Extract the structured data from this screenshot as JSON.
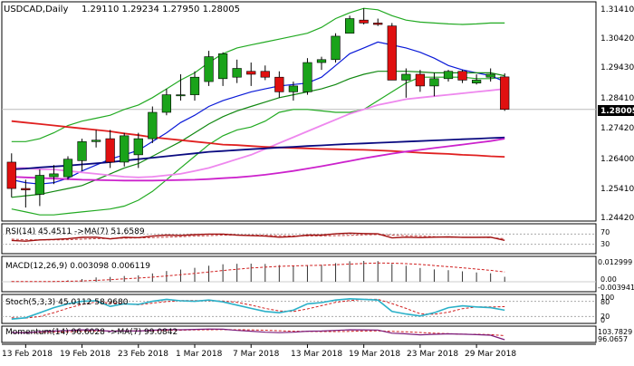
{
  "header": {
    "symbol": "USDCAD,Daily",
    "ohlc": "1.29110 1.29234 1.27950 1.28005"
  },
  "price_axis": {
    "ticks": [
      "1.31410",
      "1.30420",
      "1.29430",
      "1.28410",
      "1.27420",
      "1.26400",
      "1.25410",
      "1.24420"
    ],
    "current_price": "1.28005"
  },
  "date_labels": [
    "13 Feb 2018",
    "19 Feb 2018",
    "23 Feb 2018",
    "1 Mar 2018",
    "7 Mar 2018",
    "13 Mar 2018",
    "19 Mar 2018",
    "23 Mar 2018",
    "29 Mar 2018"
  ],
  "indicators": {
    "rsi": {
      "label": "RSI(14) 45.4511  ->MA(7) 51.6589",
      "ticks": [
        "70",
        "30"
      ],
      "value": 45.4511,
      "ma": 51.6589
    },
    "macd": {
      "label": "MACD(12,26,9) 0.003098 0.006119",
      "ticks": [
        "0.012999",
        "0.00",
        "-0.003941"
      ],
      "main": 0.003098,
      "signal": 0.006119
    },
    "stoch": {
      "label": "Stoch(5,3,3) 45.0112 58.9680",
      "ticks": [
        "100",
        "80",
        "20",
        "0"
      ],
      "main": 45.0112,
      "signal": 58.968
    },
    "momentum": {
      "label": "Momentum(14) 96.6028  ->MA(7) 99.0842",
      "ticks": [
        "103.7829",
        "96.0657"
      ],
      "value": 96.6028,
      "ma": 99.0842
    }
  },
  "colors": {
    "bull_candle": "#1aa31a",
    "bear_candle": "#e01010",
    "bollinger": "#22aa22",
    "ma_fast_blue": "#0a1ad8",
    "ma_green": "#118811",
    "ma_pink": "#ee88ee",
    "ma_red": "#e02020",
    "ma_navy": "#0a0a80",
    "ma_magenta": "#cc22cc",
    "indicator_line": "#a01010",
    "osc_line": "#2ab0c8",
    "current_price_box": "#000000"
  },
  "chart_data": {
    "type": "candlestick",
    "title": "USDCAD,Daily",
    "x": [
      "2018-02-12",
      "2018-02-13",
      "2018-02-14",
      "2018-02-15",
      "2018-02-16",
      "2018-02-19",
      "2018-02-20",
      "2018-02-21",
      "2018-02-22",
      "2018-02-23",
      "2018-02-26",
      "2018-02-27",
      "2018-02-28",
      "2018-03-01",
      "2018-03-02",
      "2018-03-05",
      "2018-03-06",
      "2018-03-07",
      "2018-03-08",
      "2018-03-09",
      "2018-03-12",
      "2018-03-13",
      "2018-03-14",
      "2018-03-15",
      "2018-03-16",
      "2018-03-19",
      "2018-03-20",
      "2018-03-21",
      "2018-03-22",
      "2018-03-23",
      "2018-03-26",
      "2018-03-27",
      "2018-03-28",
      "2018-03-29",
      "2018-03-30",
      "2018-04-02"
    ],
    "candles": [
      {
        "o": 1.262,
        "h": 1.265,
        "l": 1.25,
        "c": 1.253
      },
      {
        "o": 1.253,
        "h": 1.256,
        "l": 1.2465,
        "c": 1.2525
      },
      {
        "o": 1.251,
        "h": 1.2595,
        "l": 1.247,
        "c": 1.2575
      },
      {
        "o": 1.257,
        "h": 1.261,
        "l": 1.2545,
        "c": 1.258
      },
      {
        "o": 1.257,
        "h": 1.264,
        "l": 1.256,
        "c": 1.263
      },
      {
        "o": 1.2625,
        "h": 1.27,
        "l": 1.259,
        "c": 1.269
      },
      {
        "o": 1.269,
        "h": 1.273,
        "l": 1.267,
        "c": 1.2695
      },
      {
        "o": 1.27,
        "h": 1.273,
        "l": 1.26,
        "c": 1.262
      },
      {
        "o": 1.262,
        "h": 1.272,
        "l": 1.2605,
        "c": 1.271
      },
      {
        "o": 1.2645,
        "h": 1.272,
        "l": 1.26,
        "c": 1.27
      },
      {
        "o": 1.27,
        "h": 1.281,
        "l": 1.2685,
        "c": 1.279
      },
      {
        "o": 1.279,
        "h": 1.287,
        "l": 1.278,
        "c": 1.285
      },
      {
        "o": 1.285,
        "h": 1.292,
        "l": 1.283,
        "c": 1.285
      },
      {
        "o": 1.285,
        "h": 1.293,
        "l": 1.283,
        "c": 1.291
      },
      {
        "o": 1.2895,
        "h": 1.3,
        "l": 1.288,
        "c": 1.298
      },
      {
        "o": 1.2905,
        "h": 1.2995,
        "l": 1.288,
        "c": 1.299
      },
      {
        "o": 1.291,
        "h": 1.297,
        "l": 1.289,
        "c": 1.294
      },
      {
        "o": 1.293,
        "h": 1.296,
        "l": 1.288,
        "c": 1.292
      },
      {
        "o": 1.293,
        "h": 1.295,
        "l": 1.29,
        "c": 1.291
      },
      {
        "o": 1.291,
        "h": 1.293,
        "l": 1.284,
        "c": 1.286
      },
      {
        "o": 1.286,
        "h": 1.2895,
        "l": 1.283,
        "c": 1.288
      },
      {
        "o": 1.286,
        "h": 1.2975,
        "l": 1.285,
        "c": 1.296
      },
      {
        "o": 1.296,
        "h": 1.298,
        "l": 1.2935,
        "c": 1.297
      },
      {
        "o": 1.297,
        "h": 1.306,
        "l": 1.296,
        "c": 1.305
      },
      {
        "o": 1.306,
        "h": 1.312,
        "l": 1.306,
        "c": 1.311
      },
      {
        "o": 1.3105,
        "h": 1.3145,
        "l": 1.309,
        "c": 1.3095
      },
      {
        "o": 1.3095,
        "h": 1.311,
        "l": 1.3085,
        "c": 1.309
      },
      {
        "o": 1.3085,
        "h": 1.3095,
        "l": 1.29,
        "c": 1.29
      },
      {
        "o": 1.29,
        "h": 1.294,
        "l": 1.284,
        "c": 1.292
      },
      {
        "o": 1.292,
        "h": 1.2935,
        "l": 1.286,
        "c": 1.288
      },
      {
        "o": 1.288,
        "h": 1.2925,
        "l": 1.2845,
        "c": 1.2905
      },
      {
        "o": 1.2905,
        "h": 1.2935,
        "l": 1.2895,
        "c": 1.293
      },
      {
        "o": 1.293,
        "h": 1.2935,
        "l": 1.289,
        "c": 1.29
      },
      {
        "o": 1.289,
        "h": 1.292,
        "l": 1.2885,
        "c": 1.29
      },
      {
        "o": 1.291,
        "h": 1.294,
        "l": 1.2895,
        "c": 1.292
      },
      {
        "o": 1.2911,
        "h": 1.2923,
        "l": 1.2795,
        "c": 1.28
      }
    ],
    "ylim": [
      1.2425,
      1.3155
    ],
    "grid": false,
    "moving_averages": [
      {
        "color_key": "bollinger",
        "values": [
          1.269,
          1.269,
          1.27,
          1.272,
          1.2745,
          1.276,
          1.277,
          1.278,
          1.28,
          1.2815,
          1.284,
          1.287,
          1.29,
          1.2925,
          1.296,
          1.299,
          1.301,
          1.302,
          1.303,
          1.304,
          1.305,
          1.306,
          1.308,
          1.311,
          1.313,
          1.3145,
          1.314,
          1.312,
          1.3105,
          1.3098,
          1.3095,
          1.3092,
          1.309,
          1.3092,
          1.3095,
          1.3095
        ]
      },
      {
        "color_key": "bollinger",
        "values": [
          1.246,
          1.245,
          1.244,
          1.244,
          1.2445,
          1.245,
          1.2455,
          1.246,
          1.247,
          1.249,
          1.252,
          1.256,
          1.26,
          1.264,
          1.268,
          1.271,
          1.273,
          1.274,
          1.276,
          1.279,
          1.28,
          1.28,
          1.2795,
          1.279,
          1.279,
          1.28,
          1.283,
          1.286,
          1.289,
          1.291,
          1.291,
          1.291,
          1.291,
          1.2905,
          1.2905,
          1.291
        ]
      },
      {
        "color_key": "ma_fast_blue",
        "values": [
          1.256,
          1.255,
          1.2545,
          1.255,
          1.2565,
          1.259,
          1.261,
          1.263,
          1.2645,
          1.266,
          1.269,
          1.272,
          1.2755,
          1.278,
          1.281,
          1.283,
          1.2845,
          1.286,
          1.287,
          1.288,
          1.2885,
          1.289,
          1.291,
          1.295,
          1.299,
          1.301,
          1.303,
          1.302,
          1.301,
          1.2995,
          1.2975,
          1.295,
          1.2935,
          1.2925,
          1.2915,
          1.2895
        ]
      },
      {
        "color_key": "ma_green",
        "values": [
          1.25,
          1.2505,
          1.251,
          1.252,
          1.253,
          1.254,
          1.256,
          1.258,
          1.26,
          1.2615,
          1.264,
          1.2665,
          1.269,
          1.272,
          1.275,
          1.2775,
          1.2795,
          1.281,
          1.2825,
          1.284,
          1.285,
          1.286,
          1.287,
          1.2885,
          1.2905,
          1.292,
          1.293,
          1.293,
          1.293,
          1.2928,
          1.2925,
          1.2925,
          1.2925,
          1.2925,
          1.2925,
          1.2915
        ]
      },
      {
        "color_key": "ma_pink",
        "values": [
          1.26,
          1.26,
          1.2595,
          1.2595,
          1.259,
          1.2585,
          1.258,
          1.2575,
          1.257,
          1.2568,
          1.257,
          1.2575,
          1.258,
          1.259,
          1.26,
          1.2615,
          1.263,
          1.2645,
          1.2665,
          1.2685,
          1.2705,
          1.2725,
          1.2745,
          1.2765,
          1.2785,
          1.28,
          1.2815,
          1.2825,
          1.2835,
          1.284,
          1.2845,
          1.285,
          1.2855,
          1.286,
          1.2865,
          1.287
        ]
      },
      {
        "color_key": "ma_red",
        "values": [
          1.276,
          1.2755,
          1.275,
          1.2745,
          1.274,
          1.2735,
          1.273,
          1.2725,
          1.2718,
          1.2712,
          1.2705,
          1.27,
          1.2695,
          1.269,
          1.2685,
          1.268,
          1.2678,
          1.2675,
          1.2672,
          1.267,
          1.2668,
          1.2667,
          1.2665,
          1.2664,
          1.2663,
          1.2662,
          1.266,
          1.2658,
          1.2655,
          1.2652,
          1.265,
          1.2648,
          1.2645,
          1.2643,
          1.264,
          1.2638
        ]
      },
      {
        "color_key": "ma_navy",
        "values": [
          1.2595,
          1.2598,
          1.2602,
          1.2605,
          1.2608,
          1.2612,
          1.2616,
          1.262,
          1.2625,
          1.263,
          1.2635,
          1.264,
          1.2645,
          1.265,
          1.2655,
          1.2658,
          1.2661,
          1.2664,
          1.2667,
          1.267,
          1.2672,
          1.2675,
          1.2677,
          1.268,
          1.2682,
          1.2684,
          1.2686,
          1.2688,
          1.269,
          1.2692,
          1.2694,
          1.2696,
          1.2698,
          1.27,
          1.2702,
          1.2704
        ]
      },
      {
        "color_key": "ma_magenta",
        "values": [
          1.257,
          1.2568,
          1.2566,
          1.2564,
          1.2562,
          1.256,
          1.2559,
          1.2558,
          1.2557,
          1.2557,
          1.2557,
          1.2558,
          1.2559,
          1.256,
          1.2562,
          1.2565,
          1.2568,
          1.2572,
          1.2577,
          1.2583,
          1.259,
          1.2598,
          1.2606,
          1.2615,
          1.2624,
          1.2633,
          1.2641,
          1.2649,
          1.2656,
          1.2662,
          1.2668,
          1.2674,
          1.268,
          1.2686,
          1.2692,
          1.27
        ]
      }
    ],
    "rsi_series": [
      45,
      42,
      47,
      49,
      52,
      57,
      58,
      51,
      57,
      56,
      62,
      66,
      65,
      68,
      70,
      70,
      66,
      64,
      62,
      58,
      60,
      66,
      66,
      71,
      74,
      72,
      71,
      55,
      58,
      56,
      58,
      59,
      57,
      57,
      58,
      45.4511
    ],
    "rsi_ma_series": [
      50,
      48,
      47,
      47,
      48,
      50,
      52,
      53,
      54,
      55,
      56,
      58,
      60,
      62,
      64,
      66,
      66,
      66,
      65,
      64,
      63,
      63,
      63,
      64,
      65,
      67,
      68,
      66,
      64,
      62,
      60,
      58,
      57,
      57,
      56,
      51.6589
    ],
    "macd_histogram": [
      0.0002,
      0.0001,
      0.0002,
      0.0004,
      0.0009,
      0.0017,
      0.0027,
      0.003,
      0.0036,
      0.004,
      0.0052,
      0.0067,
      0.0076,
      0.0087,
      0.01,
      0.0109,
      0.0112,
      0.0113,
      0.0111,
      0.0104,
      0.01,
      0.0104,
      0.0106,
      0.0116,
      0.0128,
      0.013,
      0.0129,
      0.0111,
      0.01,
      0.0086,
      0.0077,
      0.0072,
      0.0065,
      0.0058,
      0.0053,
      0.0031
    ],
    "macd_signal": [
      0.0002,
      0.0002,
      0.0002,
      0.0002,
      0.0003,
      0.0005,
      0.0009,
      0.0013,
      0.0018,
      0.0023,
      0.0029,
      0.0036,
      0.0044,
      0.0052,
      0.0061,
      0.007,
      0.0078,
      0.0086,
      0.0091,
      0.0096,
      0.0099,
      0.0101,
      0.0103,
      0.0106,
      0.011,
      0.0114,
      0.0117,
      0.0116,
      0.0113,
      0.0108,
      0.0101,
      0.0094,
      0.0087,
      0.0079,
      0.0071,
      0.0061
    ],
    "stoch_main": [
      10,
      15,
      35,
      55,
      70,
      80,
      82,
      60,
      70,
      68,
      80,
      88,
      82,
      80,
      85,
      78,
      65,
      52,
      40,
      35,
      45,
      70,
      75,
      85,
      90,
      88,
      85,
      40,
      30,
      22,
      35,
      55,
      62,
      58,
      55,
      45.0112
    ],
    "stoch_signal": [
      15,
      14,
      20,
      35,
      53,
      68,
      77,
      74,
      71,
      66,
      73,
      79,
      83,
      83,
      82,
      81,
      76,
      65,
      52,
      42,
      40,
      50,
      63,
      76,
      83,
      88,
      88,
      71,
      52,
      31,
      29,
      37,
      51,
      58,
      58,
      58.968
    ],
    "momentum_series": [
      101.0,
      100.8,
      101.5,
      101.9,
      102.2,
      102.6,
      102.5,
      101.8,
      102.0,
      101.9,
      102.4,
      102.8,
      102.7,
      102.9,
      103.1,
      103.0,
      102.3,
      101.8,
      101.2,
      100.9,
      101.2,
      101.8,
      101.9,
      102.3,
      102.7,
      102.6,
      102.5,
      100.6,
      100.2,
      99.6,
      99.9,
      100.2,
      100.0,
      99.7,
      99.4,
      96.6028
    ],
    "momentum_ma_series": [
      101.0,
      100.9,
      101.0,
      101.2,
      101.4,
      101.7,
      101.9,
      101.9,
      102.0,
      102.0,
      102.1,
      102.3,
      102.4,
      102.6,
      102.7,
      102.8,
      102.7,
      102.6,
      102.4,
      102.1,
      101.8,
      101.7,
      101.6,
      101.6,
      101.7,
      101.9,
      102.0,
      101.7,
      101.4,
      101.0,
      100.6,
      100.3,
      100.0,
      99.9,
      99.7,
      99.0842
    ]
  }
}
